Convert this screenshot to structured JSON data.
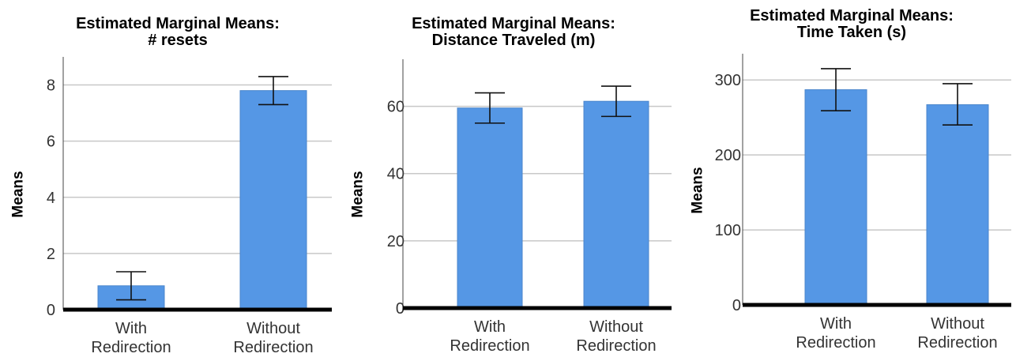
{
  "chart_data": [
    {
      "type": "bar",
      "title": "Estimated Marginal Means:",
      "subtitle": "# resets",
      "ylabel": "Means",
      "xlabel": "",
      "categories": [
        "With Redirection",
        "Without Redirection"
      ],
      "category_lines": [
        [
          "With",
          "Redirection"
        ],
        [
          "Without",
          "Redirection"
        ]
      ],
      "values": [
        0.85,
        7.8
      ],
      "error_low": [
        0.35,
        7.3
      ],
      "error_high": [
        1.35,
        8.3
      ],
      "ylim": [
        0,
        9
      ],
      "yticks": [
        0,
        2,
        4,
        6,
        8
      ],
      "grid": true,
      "bar_color": "#5597e5"
    },
    {
      "type": "bar",
      "title": "Estimated Marginal Means:",
      "subtitle": "Distance Traveled (m)",
      "ylabel": "Means",
      "xlabel": "",
      "categories": [
        "With Redirection",
        "Without Redirection"
      ],
      "category_lines": [
        [
          "With",
          "Redirection"
        ],
        [
          "Without",
          "Redirection"
        ]
      ],
      "values": [
        59.5,
        61.5
      ],
      "error_low": [
        55.0,
        57.0
      ],
      "error_high": [
        64.0,
        66.0
      ],
      "ylim": [
        0,
        74
      ],
      "yticks": [
        0,
        20,
        40,
        60
      ],
      "grid": true,
      "bar_color": "#5597e5"
    },
    {
      "type": "bar",
      "title": "Estimated Marginal Means:",
      "subtitle": "Time Taken (s)",
      "ylabel": "Means",
      "xlabel": "",
      "categories": [
        "With Redirection",
        "Without Redirection"
      ],
      "category_lines": [
        [
          "With",
          "Redirection"
        ],
        [
          "Without",
          "Redirection"
        ]
      ],
      "values": [
        287,
        267
      ],
      "error_low": [
        259,
        240
      ],
      "error_high": [
        315,
        295
      ],
      "ylim": [
        0,
        335
      ],
      "yticks": [
        0,
        100,
        200,
        300
      ],
      "grid": true,
      "bar_color": "#5597e5"
    }
  ]
}
